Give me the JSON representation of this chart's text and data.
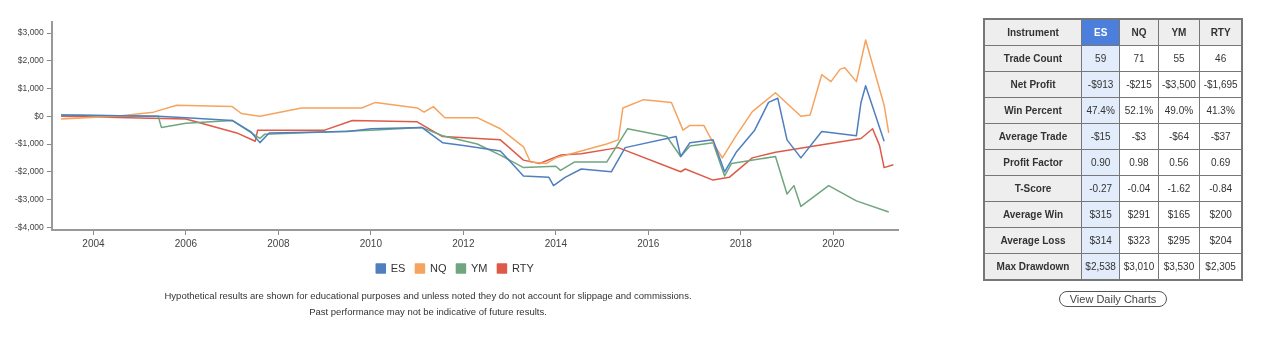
{
  "chart_data": [
    {
      "type": "line",
      "xlim": [
        2003.1,
        2021.4
      ],
      "ylim": [
        -4100,
        3400
      ],
      "xticks": [
        2004,
        2006,
        2008,
        2010,
        2012,
        2014,
        2016,
        2018,
        2020
      ],
      "yticks": [
        {
          "value": -4000,
          "label": "-$4,000"
        },
        {
          "value": -3000,
          "label": "-$3,000"
        },
        {
          "value": -2000,
          "label": "-$2,000"
        },
        {
          "value": -1000,
          "label": "-$1,000"
        },
        {
          "value": 0,
          "label": "$0"
        },
        {
          "value": 1000,
          "label": "$1,000"
        },
        {
          "value": 2000,
          "label": "$2,000"
        },
        {
          "value": 3000,
          "label": "$3,000"
        }
      ],
      "grid": false,
      "legend": "bottom",
      "series": [
        {
          "name": "ES",
          "color": "#4f7fbf",
          "x": [
            2003.3,
            2005.4,
            2006.0,
            2007.0,
            2007.4,
            2007.6,
            2007.8,
            2009.5,
            2010.0,
            2011.1,
            2011.55,
            2012.0,
            2012.8,
            2013.3,
            2013.85,
            2013.95,
            2014.2,
            2014.55,
            2015.2,
            2015.5,
            2016.6,
            2016.7,
            2016.9,
            2017.4,
            2017.65,
            2017.9,
            2018.3,
            2018.6,
            2018.8,
            2019.0,
            2019.3,
            2019.75,
            2020.5,
            2020.6,
            2020.7,
            2021.1
          ],
          "values": [
            50,
            0,
            -50,
            -150,
            -550,
            -950,
            -600,
            -550,
            -450,
            -400,
            -950,
            -1050,
            -1250,
            -2150,
            -2200,
            -2500,
            -2200,
            -1900,
            -2000,
            -1130,
            -730,
            -1450,
            -950,
            -850,
            -2000,
            -1300,
            -500,
            500,
            650,
            -850,
            -1500,
            -550,
            -700,
            500,
            1100,
            -900
          ]
        },
        {
          "name": "NQ",
          "color": "#f5a460",
          "x": [
            2003.3,
            2004.5,
            2005.3,
            2005.8,
            2007.0,
            2007.2,
            2007.6,
            2008.5,
            2009.8,
            2010.1,
            2011.0,
            2011.15,
            2011.35,
            2011.6,
            2012.3,
            2012.8,
            2013.3,
            2013.45,
            2013.8,
            2014.0,
            2014.55,
            2015.1,
            2015.35,
            2015.45,
            2015.9,
            2016.5,
            2016.75,
            2016.9,
            2017.2,
            2017.4,
            2017.6,
            2017.9,
            2018.25,
            2018.75,
            2019.3,
            2019.5,
            2019.75,
            2019.95,
            2020.15,
            2020.25,
            2020.5,
            2020.7,
            2021.1,
            2021.2
          ],
          "values": [
            -100,
            0,
            150,
            400,
            350,
            100,
            0,
            300,
            300,
            500,
            300,
            150,
            350,
            -50,
            -50,
            -450,
            -1100,
            -1650,
            -1700,
            -1500,
            -1250,
            -1000,
            -850,
            300,
            600,
            500,
            -500,
            -330,
            -330,
            -950,
            -1500,
            -700,
            170,
            850,
            0,
            50,
            1500,
            1250,
            1700,
            1750,
            1250,
            2750,
            400,
            -600
          ]
        },
        {
          "name": "YM",
          "color": "#6fa67f",
          "x": [
            2003.3,
            2005.4,
            2005.47,
            2006.0,
            2007.0,
            2007.6,
            2007.7,
            2010.0,
            2011.1,
            2011.55,
            2012.3,
            2012.8,
            2013.3,
            2014.0,
            2014.1,
            2014.4,
            2015.1,
            2015.55,
            2016.4,
            2016.7,
            2016.9,
            2017.4,
            2017.65,
            2017.8,
            2018.75,
            2019.0,
            2019.15,
            2019.3,
            2019.9,
            2020.5,
            2021.2
          ],
          "values": [
            50,
            0,
            -400,
            -250,
            -150,
            -800,
            -650,
            -500,
            -400,
            -700,
            -1000,
            -1400,
            -1850,
            -1800,
            -1950,
            -1650,
            -1650,
            -450,
            -730,
            -1450,
            -1070,
            -950,
            -2150,
            -1700,
            -1450,
            -2800,
            -2500,
            -3250,
            -2500,
            -3050,
            -3450
          ]
        },
        {
          "name": "RTY",
          "color": "#dd5a48",
          "x": [
            2003.3,
            2006.0,
            2007.1,
            2007.5,
            2007.55,
            2009.0,
            2009.6,
            2011.0,
            2011.55,
            2012.8,
            2013.3,
            2013.65,
            2014.1,
            2014.55,
            2015.35,
            2016.7,
            2016.8,
            2017.4,
            2017.75,
            2018.25,
            2018.75,
            2020.6,
            2020.85,
            2021.0,
            2021.1,
            2021.3
          ],
          "values": [
            0,
            -100,
            -600,
            -900,
            -500,
            -500,
            -150,
            -200,
            -730,
            -850,
            -1580,
            -1700,
            -1400,
            -1350,
            -1130,
            -2000,
            -1900,
            -2300,
            -2200,
            -1500,
            -1300,
            -800,
            -450,
            -1050,
            -1850,
            -1750
          ]
        }
      ],
      "annotations": [
        "Hypothetical results are shown for educational purposes and unless noted they do not account for slippage and commissions.",
        "Past performance may not be indicative of future results."
      ]
    },
    {
      "type": "other",
      "ylabel": "Instrument",
      "categories": [
        "ES",
        "NQ",
        "YM",
        "RTY"
      ],
      "y_categories": [
        "Trade Count",
        "Net Profit",
        "Win Percent",
        "Average Trade",
        "Profit Factor",
        "T-Score",
        "Average Win",
        "Average Loss",
        "Max Drawdown"
      ],
      "cell_labels": [
        [
          "59",
          "71",
          "55",
          "46"
        ],
        [
          "-$913",
          "-$215",
          "-$3,500",
          "-$1,695"
        ],
        [
          "47.4%",
          "52.1%",
          "49.0%",
          "41.3%"
        ],
        [
          "-$15",
          "-$3",
          "-$64",
          "-$37"
        ],
        [
          "0.90",
          "0.98",
          "0.56",
          "0.69"
        ],
        [
          "-0.27",
          "-0.04",
          "-1.62",
          "-0.84"
        ],
        [
          "$315",
          "$291",
          "$165",
          "$200"
        ],
        [
          "$314",
          "$323",
          "$295",
          "$204"
        ],
        [
          "$2,538",
          "$3,010",
          "$3,530",
          "$2,305"
        ]
      ],
      "annotations": [
        "View Daily Charts"
      ]
    }
  ]
}
